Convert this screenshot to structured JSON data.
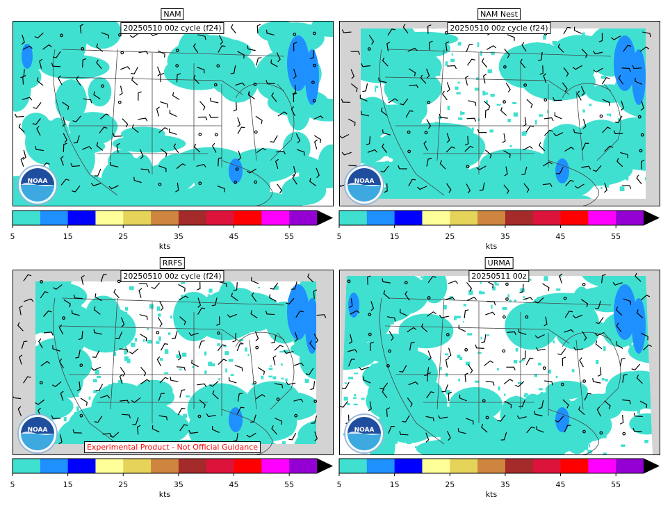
{
  "panels": [
    {
      "model": "NAM",
      "cycle": "20250510 00z cycle (f24)"
    },
    {
      "model": "NAM Nest",
      "cycle": "20250510 00z cycle (f24)"
    },
    {
      "model": "RRFS",
      "cycle": "20250510 00z cycle (f24)",
      "disclaimer": "Experimental Product - Not Official Guidance"
    },
    {
      "model": "URMA",
      "cycle": "20250511 00z"
    }
  ],
  "colorbar": {
    "bins": [
      5,
      10,
      15,
      20,
      25,
      30,
      35,
      40,
      45,
      50,
      55,
      60
    ],
    "colors": [
      "#40e0d0",
      "#1e90ff",
      "#0000ff",
      "#ffff99",
      "#e6d35a",
      "#cd853f",
      "#a52a2a",
      "#dc143c",
      "#ff0000",
      "#ff00ff",
      "#9400d3"
    ],
    "over_color": "#000000",
    "tick_labels": [
      "5",
      "15",
      "25",
      "35",
      "45",
      "55"
    ],
    "unit": "kts"
  },
  "map_colors": {
    "land_mask": "#d3d3d3",
    "low_wind": "#40e0d0",
    "mid_wind": "#1e90ff",
    "barb": "#000000"
  },
  "logo_text": "NOAA"
}
